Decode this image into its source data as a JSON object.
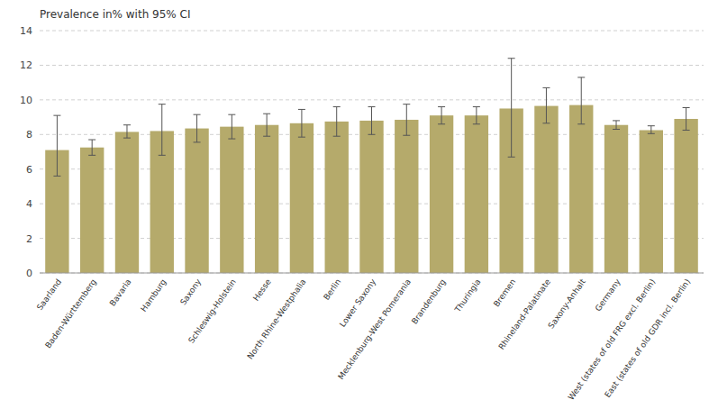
{
  "chart_data": {
    "type": "bar",
    "ylabel": "Prevalence in% with 95% CI",
    "categories": [
      "Saarland",
      "Baden-Württemberg",
      "Bavaria",
      "Hamburg",
      "Saxony",
      "Schleswig-Holstein",
      "Hesse",
      "North Rhine-Westphalia",
      "Berlin",
      "Lower Saxony",
      "Mecklenburg-West Pomerania",
      "Brandenburg",
      "Thuringia",
      "Bremen",
      "Rhineland-Palatinate",
      "Saxony-Anhalt",
      "Germany",
      "West (states of old FRG excl. Berlin)",
      "East (states of old GDR incl. Berlin)"
    ],
    "values": [
      7.1,
      7.25,
      8.15,
      8.2,
      8.35,
      8.45,
      8.55,
      8.65,
      8.75,
      8.8,
      8.85,
      9.1,
      9.1,
      9.5,
      9.65,
      9.7,
      8.55,
      8.25,
      8.9
    ],
    "ci_low": [
      5.6,
      6.8,
      7.8,
      6.8,
      7.55,
      7.75,
      7.9,
      7.85,
      7.9,
      8.0,
      7.95,
      8.6,
      8.6,
      6.7,
      8.65,
      8.6,
      8.3,
      8.05,
      8.25
    ],
    "ci_high": [
      9.1,
      7.7,
      8.55,
      9.75,
      9.15,
      9.15,
      9.2,
      9.45,
      9.6,
      9.6,
      9.75,
      9.6,
      9.6,
      12.4,
      10.7,
      11.3,
      8.8,
      8.5,
      9.55
    ],
    "color": "#b5aa6b",
    "ylim": [
      0,
      14
    ],
    "yticks": [
      0,
      2,
      4,
      6,
      8,
      10,
      12,
      14
    ],
    "grid": true
  }
}
